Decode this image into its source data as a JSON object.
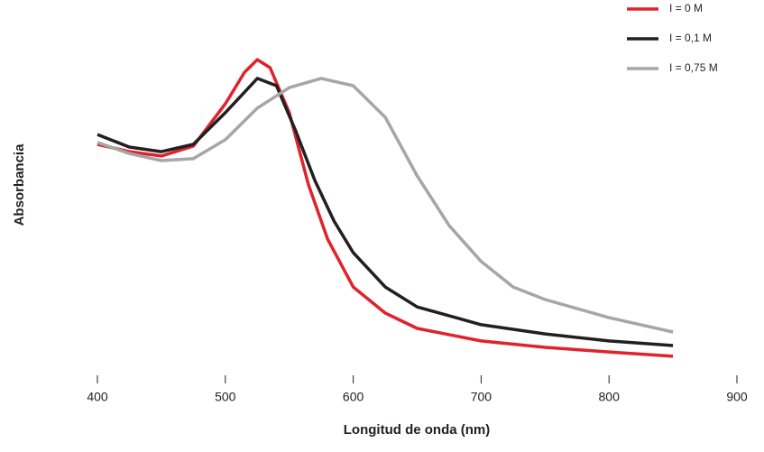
{
  "chart_data": {
    "type": "line",
    "x_label": "Longitud de onda (nm)",
    "y_label": "Absorbancia",
    "xlim": [
      400,
      900
    ],
    "xticks": [
      400,
      500,
      600,
      700,
      800,
      900
    ],
    "ylim": [
      0,
      1
    ],
    "legend": "top-right",
    "series": [
      {
        "name": "I = 0 M",
        "color": "#e0222b",
        "x": [
          400,
          425,
          450,
          475,
          500,
          515,
          525,
          535,
          550,
          565,
          580,
          600,
          625,
          650,
          700,
          750,
          800,
          850
        ],
        "values": [
          0.706,
          0.682,
          0.668,
          0.7,
          0.838,
          0.941,
          0.982,
          0.956,
          0.809,
          0.574,
          0.397,
          0.241,
          0.156,
          0.106,
          0.065,
          0.044,
          0.029,
          0.015
        ]
      },
      {
        "name": "I = 0,1 M",
        "color": "#231f20",
        "x": [
          400,
          425,
          450,
          475,
          500,
          525,
          540,
          555,
          570,
          585,
          600,
          625,
          650,
          700,
          750,
          800,
          850
        ],
        "values": [
          0.738,
          0.697,
          0.682,
          0.706,
          0.809,
          0.921,
          0.897,
          0.75,
          0.588,
          0.456,
          0.353,
          0.241,
          0.176,
          0.118,
          0.088,
          0.065,
          0.05
        ]
      },
      {
        "name": "I = 0,75 M",
        "color": "#a6a6a6",
        "x": [
          400,
          425,
          450,
          475,
          500,
          525,
          550,
          575,
          600,
          625,
          650,
          675,
          700,
          725,
          750,
          800,
          850
        ],
        "values": [
          0.712,
          0.676,
          0.653,
          0.659,
          0.721,
          0.824,
          0.891,
          0.921,
          0.897,
          0.794,
          0.603,
          0.441,
          0.324,
          0.241,
          0.2,
          0.141,
          0.094
        ]
      }
    ]
  }
}
